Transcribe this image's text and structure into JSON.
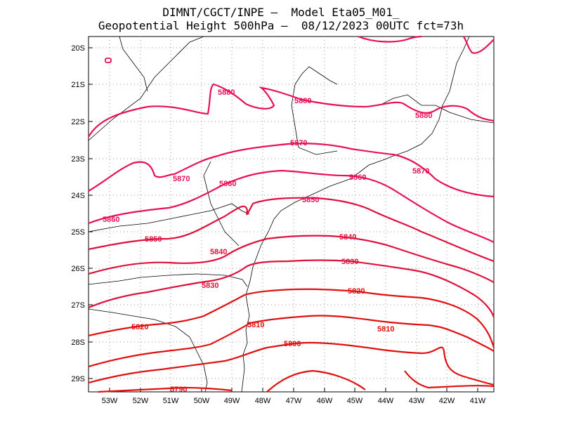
{
  "header": {
    "line1": "DIMNT/CGCT/INPE –  Model Eta05_M01_",
    "line2": "Geopotential Height 500hPa –  08/12/2023 00UTC fct=73h"
  },
  "axes": {
    "lat_labels": [
      "20S",
      "21S",
      "22S",
      "23S",
      "24S",
      "25S",
      "26S",
      "27S",
      "28S",
      "29S"
    ],
    "lon_labels": [
      "53W",
      "52W",
      "51W",
      "50W",
      "49W",
      "48W",
      "47W",
      "46W",
      "45W",
      "44W",
      "43W",
      "42W",
      "41W"
    ]
  },
  "contour_labels": [
    "5880",
    "5880",
    "5880",
    "5870",
    "5870",
    "5870",
    "5860",
    "5860",
    "5860",
    "5850",
    "5850",
    "5840",
    "5840",
    "5830",
    "5830",
    "5820",
    "5820",
    "5810",
    "5810",
    "5800",
    "5790"
  ],
  "colors": {
    "contour_high": "#e8105a",
    "contour_mid": "#e0103c",
    "contour_low": "#e01010",
    "coast": "#000000",
    "grid": "#999999"
  }
}
